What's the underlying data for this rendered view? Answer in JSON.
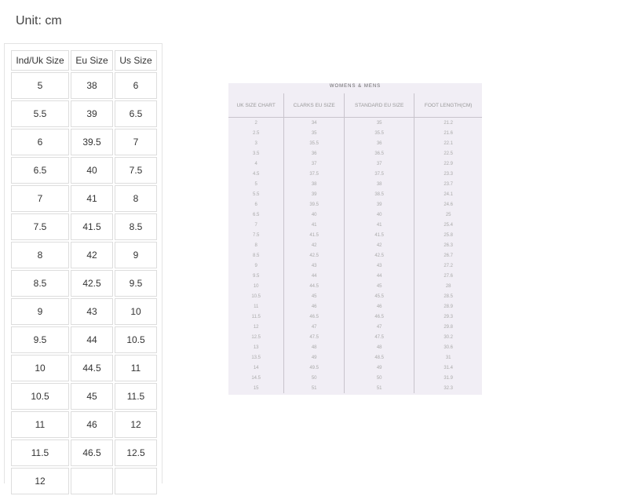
{
  "unit_label": "Unit: cm",
  "size_table": {
    "headers": [
      "Ind/Uk Size",
      "Eu Size",
      "Us Size"
    ],
    "rows": [
      [
        "5",
        "38",
        "6"
      ],
      [
        "5.5",
        "39",
        "6.5"
      ],
      [
        "6",
        "39.5",
        "7"
      ],
      [
        "6.5",
        "40",
        "7.5"
      ],
      [
        "7",
        "41",
        "8"
      ],
      [
        "7.5",
        "41.5",
        "8.5"
      ],
      [
        "8",
        "42",
        "9"
      ],
      [
        "8.5",
        "42.5",
        "9.5"
      ],
      [
        "9",
        "43",
        "10"
      ],
      [
        "9.5",
        "44",
        "10.5"
      ],
      [
        "10",
        "44.5",
        "11"
      ],
      [
        "10.5",
        "45",
        "11.5"
      ],
      [
        "11",
        "46",
        "12"
      ],
      [
        "11.5",
        "46.5",
        "12.5"
      ],
      [
        "12",
        "",
        ""
      ]
    ]
  },
  "chart_image": {
    "title": "WOMENS & MENS",
    "headers": [
      "UK SIZE CHART",
      "CLARKS EU SIZE",
      "STANDARD EU SIZE",
      "FOOT LENGTH(CM)"
    ],
    "rows": [
      [
        "2",
        "34",
        "35",
        "21.2"
      ],
      [
        "2.5",
        "35",
        "35.5",
        "21.6"
      ],
      [
        "3",
        "35.5",
        "36",
        "22.1"
      ],
      [
        "3.5",
        "36",
        "36.5",
        "22.5"
      ],
      [
        "4",
        "37",
        "37",
        "22.9"
      ],
      [
        "4.5",
        "37.5",
        "37.5",
        "23.3"
      ],
      [
        "5",
        "38",
        "38",
        "23.7"
      ],
      [
        "5.5",
        "39",
        "38.5",
        "24.1"
      ],
      [
        "6",
        "39.5",
        "39",
        "24.6"
      ],
      [
        "6.5",
        "40",
        "40",
        "25"
      ],
      [
        "7",
        "41",
        "41",
        "25.4"
      ],
      [
        "7.5",
        "41.5",
        "41.5",
        "25.8"
      ],
      [
        "8",
        "42",
        "42",
        "26.3"
      ],
      [
        "8.5",
        "42.5",
        "42.5",
        "26.7"
      ],
      [
        "9",
        "43",
        "43",
        "27.2"
      ],
      [
        "9.5",
        "44",
        "44",
        "27.6"
      ],
      [
        "10",
        "44.5",
        "45",
        "28"
      ],
      [
        "10.5",
        "45",
        "45.5",
        "28.5"
      ],
      [
        "11",
        "46",
        "46",
        "28.9"
      ],
      [
        "11.5",
        "46.5",
        "46.5",
        "29.3"
      ],
      [
        "12",
        "47",
        "47",
        "29.8"
      ],
      [
        "12.5",
        "47.5",
        "47.5",
        "30.2"
      ],
      [
        "13",
        "48",
        "48",
        "30.6"
      ],
      [
        "13.5",
        "49",
        "48.5",
        "31"
      ],
      [
        "14",
        "49.5",
        "49",
        "31.4"
      ],
      [
        "14.5",
        "50",
        "50",
        "31.9"
      ],
      [
        "15",
        "51",
        "51",
        "32.3"
      ]
    ]
  }
}
